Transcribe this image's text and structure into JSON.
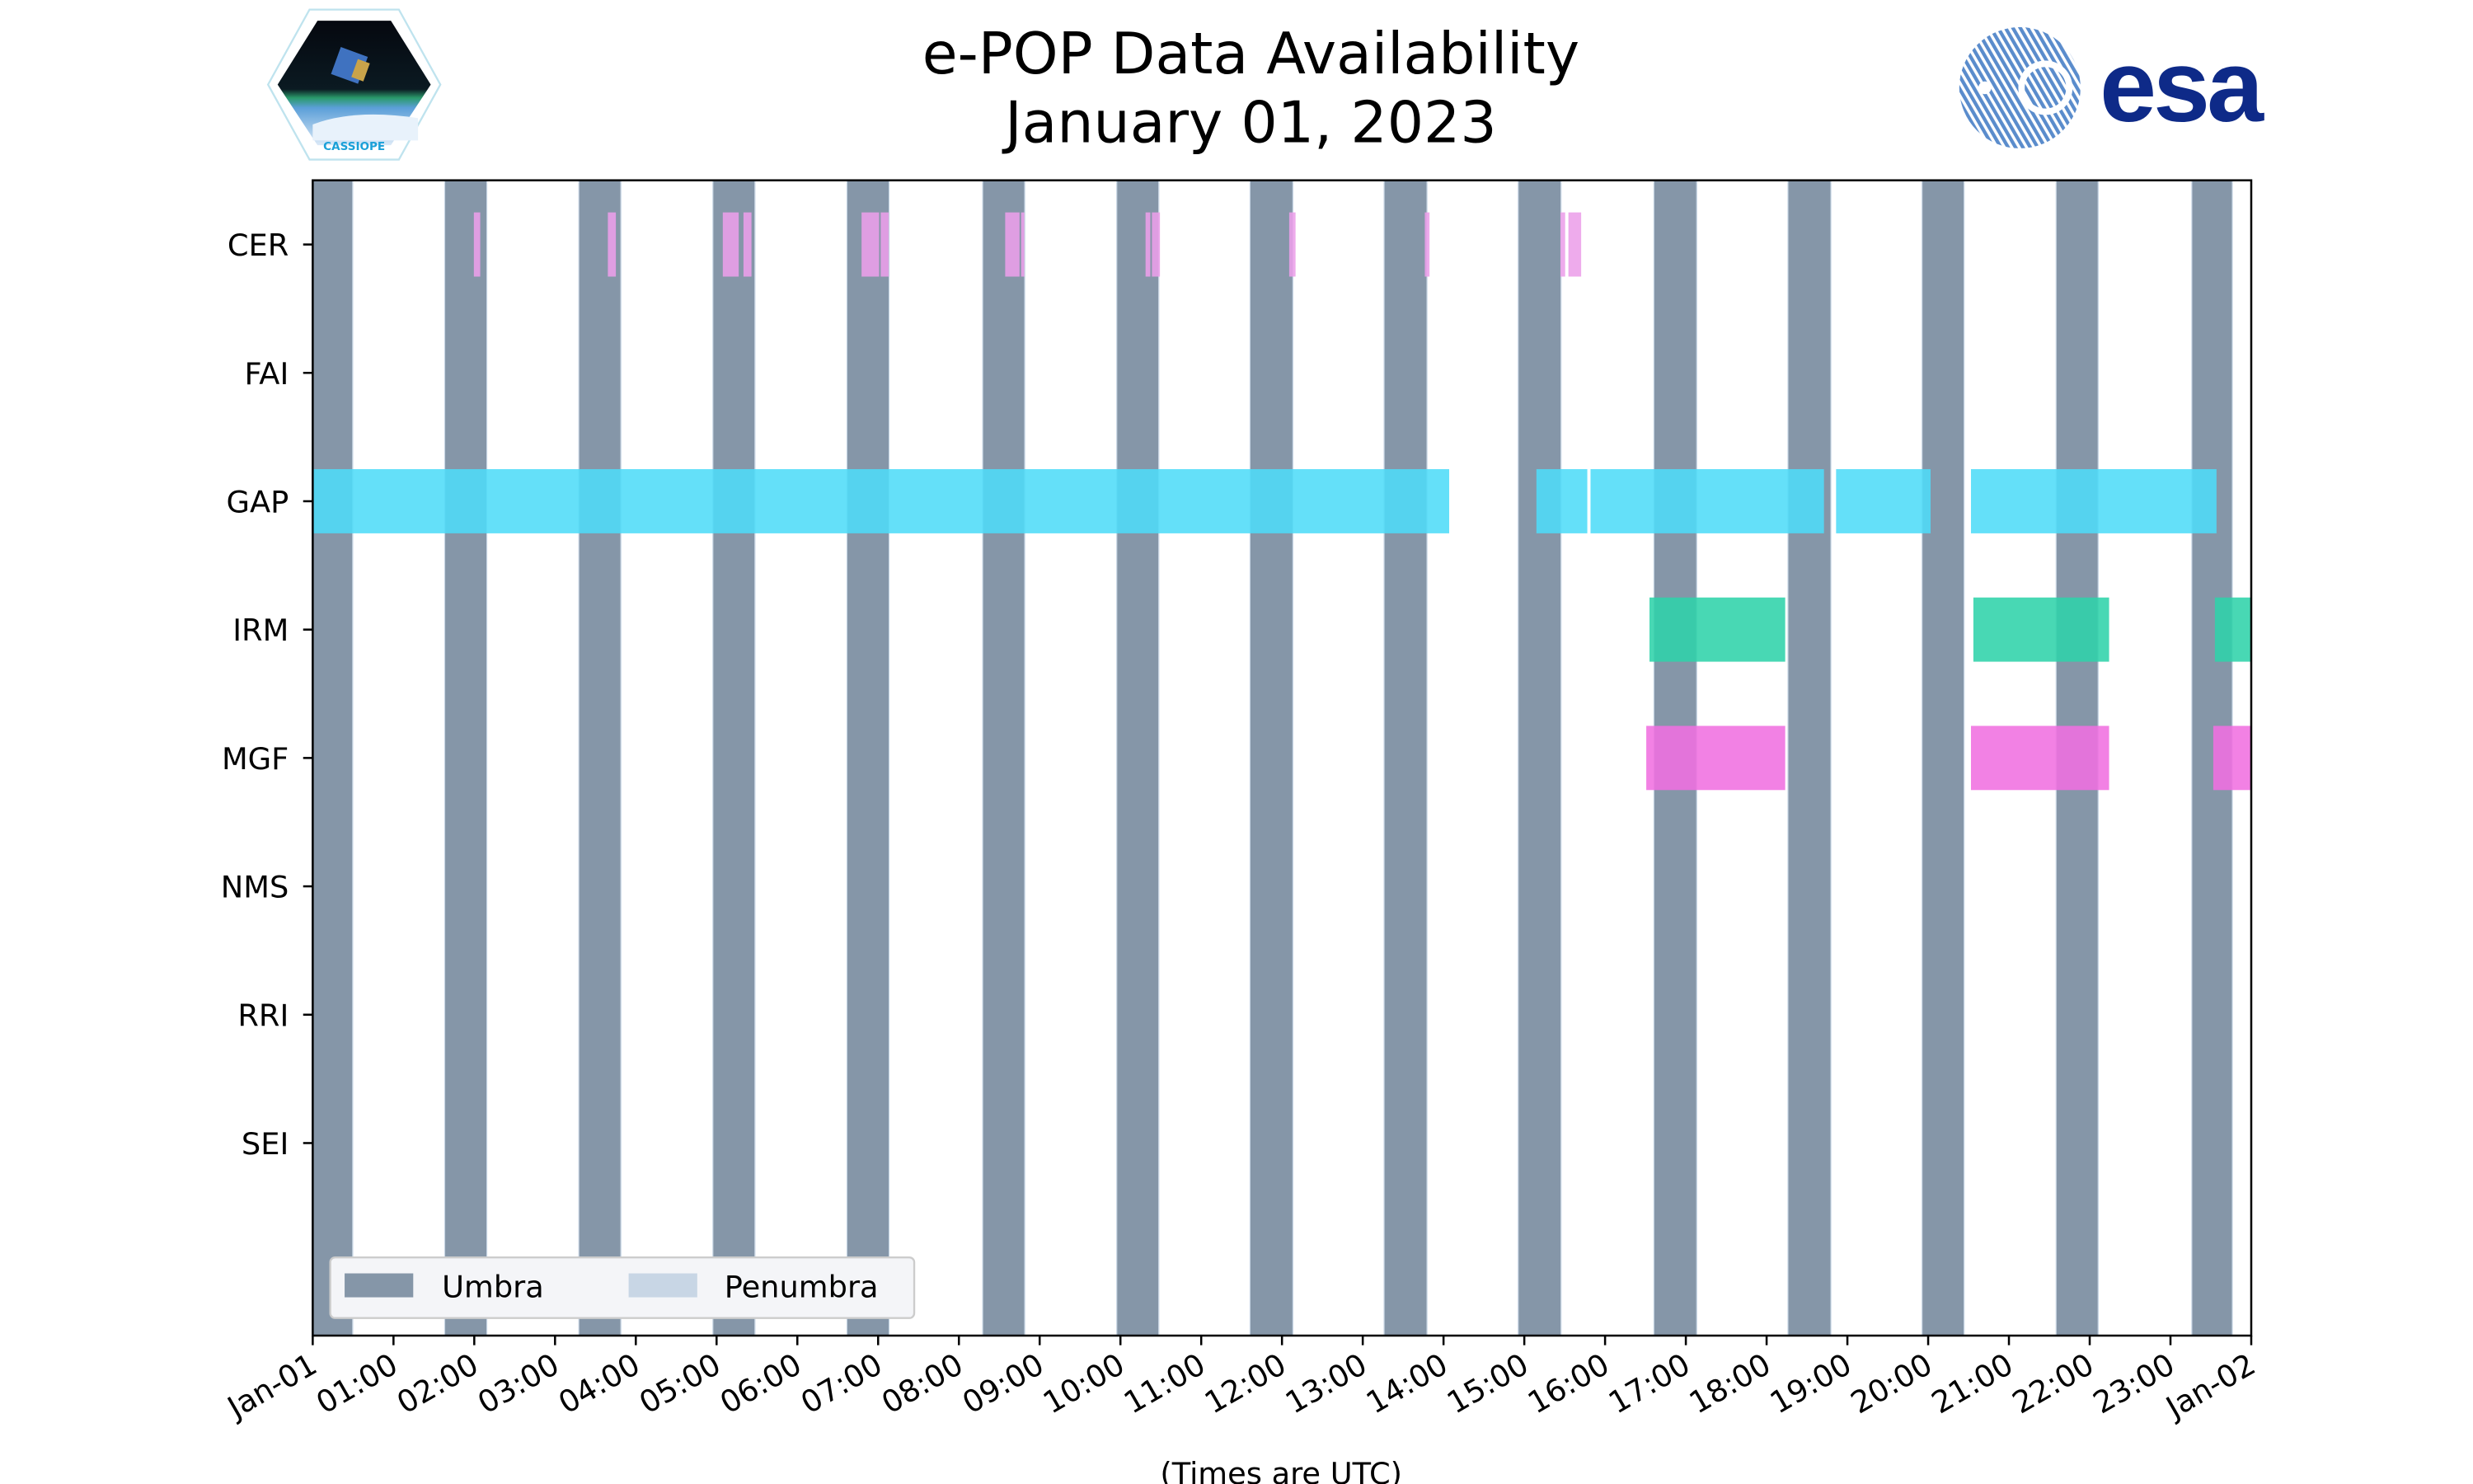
{
  "header": {
    "title_line1": "e-POP Data Availability",
    "title_line2": "January 01, 2023",
    "left_logo_text": "CASSIOPE",
    "right_logo_text": "esa"
  },
  "chart_data": {
    "type": "timeline",
    "title": "e-POP Data Availability January 01, 2023",
    "xlabel": "(Times are UTC)",
    "ylabel": "",
    "xlim_hours": [
      0,
      24
    ],
    "x_tick_labels": [
      "Jan-01",
      "01:00",
      "02:00",
      "03:00",
      "04:00",
      "05:00",
      "06:00",
      "07:00",
      "08:00",
      "09:00",
      "10:00",
      "11:00",
      "12:00",
      "13:00",
      "14:00",
      "15:00",
      "16:00",
      "17:00",
      "18:00",
      "19:00",
      "20:00",
      "21:00",
      "22:00",
      "23:00",
      "Jan-02"
    ],
    "categories": [
      "CER",
      "FAI",
      "GAP",
      "IRM",
      "MGF",
      "NMS",
      "RRI",
      "SEI"
    ],
    "ylim": [
      -0.5,
      8.5
    ],
    "colors": {
      "umbra": "#8596a8",
      "penumbra": "#c8d6e5",
      "CER": "#ec9fe9",
      "GAP": "#4fdcf8",
      "IRM": "#2fd3aa",
      "MGF": "#f070e0"
    },
    "legend": {
      "position": "lower-left",
      "entries": [
        "Umbra",
        "Penumbra"
      ]
    },
    "umbra_intervals_hours": [
      [
        0,
        0.49
      ],
      [
        1.64,
        2.15
      ],
      [
        3.3,
        3.81
      ],
      [
        4.96,
        5.47
      ],
      [
        6.62,
        7.13
      ],
      [
        8.3,
        8.81
      ],
      [
        9.96,
        10.47
      ],
      [
        11.61,
        12.13
      ],
      [
        13.27,
        13.79
      ],
      [
        14.93,
        15.45
      ],
      [
        16.61,
        17.13
      ],
      [
        18.27,
        18.79
      ],
      [
        19.93,
        20.44
      ],
      [
        21.59,
        22.1
      ],
      [
        23.27,
        23.76
      ]
    ],
    "series": [
      {
        "name": "CER",
        "intervals_hours": [
          [
            1.995,
            2.074
          ],
          [
            3.654,
            3.753
          ],
          [
            5.077,
            5.274
          ],
          [
            5.333,
            5.432
          ],
          [
            6.795,
            7.012
          ],
          [
            7.032,
            7.131
          ],
          [
            8.573,
            8.751
          ],
          [
            8.77,
            8.81
          ],
          [
            10.311,
            10.37
          ],
          [
            10.39,
            10.489
          ],
          [
            12.089,
            12.168
          ],
          [
            13.768,
            13.827
          ],
          [
            15.447,
            15.506
          ],
          [
            15.546,
            15.704
          ]
        ]
      },
      {
        "name": "FAI",
        "intervals_hours": []
      },
      {
        "name": "GAP",
        "intervals_hours": [
          [
            0,
            14.07
          ],
          [
            15.15,
            15.78
          ],
          [
            15.82,
            18.71
          ],
          [
            18.86,
            20.03
          ],
          [
            20.53,
            23.57
          ]
        ]
      },
      {
        "name": "IRM",
        "intervals_hours": [
          [
            16.55,
            18.23
          ],
          [
            20.56,
            22.24
          ],
          [
            23.55,
            24
          ]
        ]
      },
      {
        "name": "MGF",
        "intervals_hours": [
          [
            16.51,
            18.23
          ],
          [
            20.53,
            22.24
          ],
          [
            23.53,
            24
          ]
        ]
      },
      {
        "name": "NMS",
        "intervals_hours": []
      },
      {
        "name": "RRI",
        "intervals_hours": []
      },
      {
        "name": "SEI",
        "intervals_hours": []
      }
    ]
  }
}
